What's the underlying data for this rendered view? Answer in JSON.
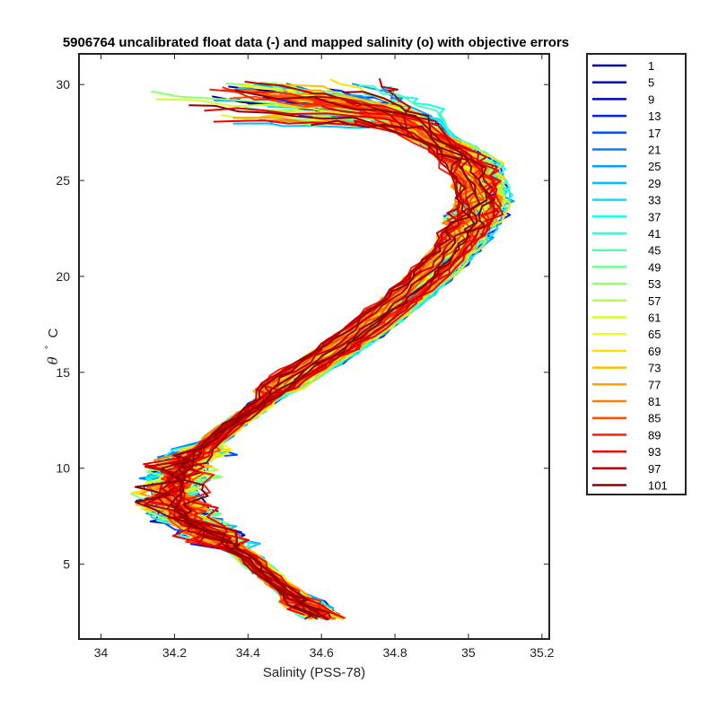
{
  "chart_data": {
    "type": "line",
    "title": "5906764 uncalibrated float data (-) and mapped salinity (o) with objective errors",
    "xlabel": "Salinity (PSS-78)",
    "ylabel": {
      "symbol": "θ",
      "degree": "°",
      "unit": "C"
    },
    "xlim": [
      33.94,
      35.22
    ],
    "ylim": [
      1.1,
      31.6
    ],
    "xticks": [
      34,
      34.2,
      34.4,
      34.6,
      34.8,
      35,
      35.2
    ],
    "xtick_labels": [
      "34",
      "34.2",
      "34.4",
      "34.6",
      "34.8",
      "35",
      "35.2"
    ],
    "yticks": [
      5,
      10,
      15,
      20,
      25,
      30
    ],
    "ytick_labels": [
      "5",
      "10",
      "15",
      "20",
      "25",
      "30"
    ],
    "grid": false,
    "legend_position": "outside-right",
    "colormap": "jet",
    "series": [
      {
        "name": "1",
        "color": "#00008f"
      },
      {
        "name": "5",
        "color": "#0000bf"
      },
      {
        "name": "9",
        "color": "#0000ef"
      },
      {
        "name": "13",
        "color": "#0020ff"
      },
      {
        "name": "17",
        "color": "#0050ff"
      },
      {
        "name": "21",
        "color": "#0080ff"
      },
      {
        "name": "25",
        "color": "#00a0ff"
      },
      {
        "name": "29",
        "color": "#00c0ff"
      },
      {
        "name": "33",
        "color": "#00e0ff"
      },
      {
        "name": "37",
        "color": "#10ffef"
      },
      {
        "name": "41",
        "color": "#30ffcf"
      },
      {
        "name": "45",
        "color": "#50ffaf"
      },
      {
        "name": "49",
        "color": "#70ff8f"
      },
      {
        "name": "53",
        "color": "#90ff6f"
      },
      {
        "name": "57",
        "color": "#b0ff4f"
      },
      {
        "name": "61",
        "color": "#d0ff2f"
      },
      {
        "name": "65",
        "color": "#f0ff0f"
      },
      {
        "name": "69",
        "color": "#ffdf00"
      },
      {
        "name": "73",
        "color": "#ffbf00"
      },
      {
        "name": "77",
        "color": "#ff9f00"
      },
      {
        "name": "81",
        "color": "#ff7f00"
      },
      {
        "name": "85",
        "color": "#ff4f00"
      },
      {
        "name": "89",
        "color": "#ff1f00"
      },
      {
        "name": "93",
        "color": "#ef0000"
      },
      {
        "name": "97",
        "color": "#bf0000"
      },
      {
        "name": "101",
        "color": "#8f0000"
      }
    ],
    "base_profile": [
      [
        34.62,
        2.1
      ],
      [
        34.55,
        3.0
      ],
      [
        34.47,
        4.2
      ],
      [
        34.4,
        5.4
      ],
      [
        34.32,
        6.3
      ],
      [
        34.24,
        7.3
      ],
      [
        34.2,
        8.2
      ],
      [
        34.2,
        9.0
      ],
      [
        34.22,
        10.0
      ],
      [
        34.28,
        11.0
      ],
      [
        34.36,
        12.3
      ],
      [
        34.46,
        13.7
      ],
      [
        34.56,
        15.0
      ],
      [
        34.66,
        16.2
      ],
      [
        34.76,
        17.6
      ],
      [
        34.86,
        19.2
      ],
      [
        34.94,
        20.6
      ],
      [
        35.0,
        22.0
      ],
      [
        35.04,
        23.5
      ],
      [
        35.05,
        24.8
      ],
      [
        35.02,
        25.9
      ],
      [
        34.94,
        27.0
      ],
      [
        34.82,
        28.0
      ],
      [
        34.65,
        28.8
      ],
      [
        34.48,
        29.4
      ],
      [
        34.4,
        29.8
      ]
    ]
  }
}
